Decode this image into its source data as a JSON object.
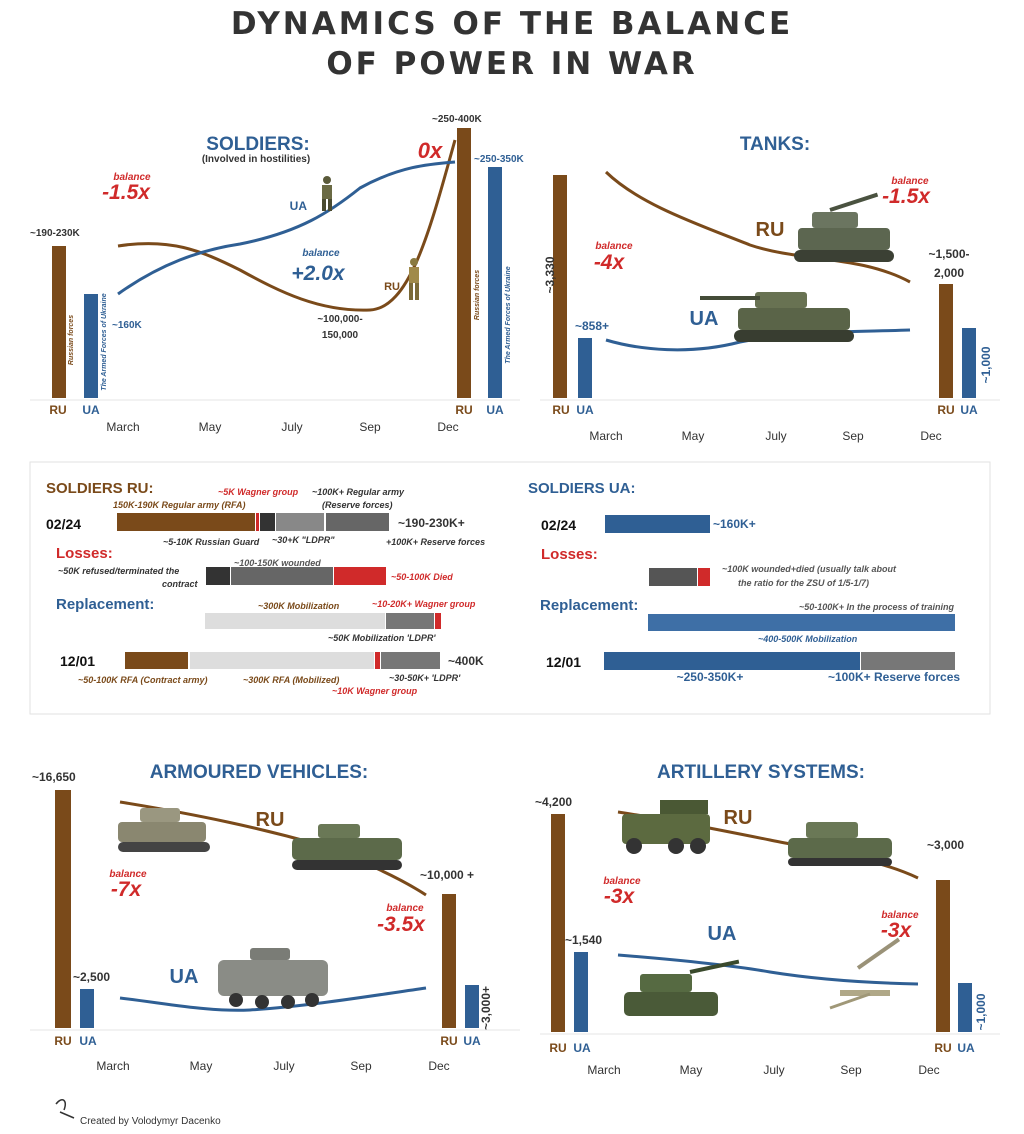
{
  "title": {
    "line1": "DYNAMICS OF THE BALANCE",
    "line2": "OF POWER IN WAR"
  },
  "colors": {
    "ru": "#7a4a1a",
    "ua": "#2f5f94",
    "red": "#d02a2a",
    "grey": "#666666",
    "light": "#dddddd"
  },
  "months": [
    "March",
    "May",
    "July",
    "Sep",
    "Dec"
  ],
  "credit": "Created by Volodymyr Dacenko",
  "soldiers": {
    "title": "SOLDIERS:",
    "subtitle": "(Involved in hostilities)",
    "ru_start": "~190-230K",
    "ua_start": "~160K",
    "ru_end": "~250-400K",
    "ua_end": "~250-350K",
    "mid_ru": "~100,000-",
    "mid_ru2": "150,000",
    "balance_word": "balance",
    "b1": "-1.5x",
    "b2": "+2.0x",
    "b3": "0x",
    "ua_tag": "UA",
    "ru_tag": "RU",
    "ru_bar_label": "Russian forces",
    "ua_bar_label": "The Armed Forces of Ukraine"
  },
  "tanks": {
    "title": "TANKS:",
    "ru_start": "~3,330",
    "ua_start": "~858+",
    "ru_end": "~1,500-",
    "ru_end2": "2,000",
    "ua_end": "~1,000",
    "balance_word": "balance",
    "b1": "-4x",
    "b2": "-1.5x",
    "ru_tag": "RU",
    "ua_tag": "UA"
  },
  "armoured": {
    "title": "ARMOURED VEHICLES:",
    "ru_start": "~16,650",
    "ua_start": "~2,500",
    "ru_end": "~10,000 +",
    "ua_end": "~3,000+",
    "balance_word": "balance",
    "b1": "-7x",
    "b2": "-3.5x",
    "ru_tag": "RU",
    "ua_tag": "UA"
  },
  "artillery": {
    "title": "ARTILLERY SYSTEMS:",
    "ru_start": "~4,200",
    "ua_start": "~1,540",
    "ru_end": "~3,000",
    "ua_end": "~1,000",
    "balance_word": "balance",
    "b1": "-3x",
    "b2": "-3x",
    "ru_tag": "RU",
    "ua_tag": "UA"
  },
  "breakdown_ru": {
    "title": "SOLDIERS RU:",
    "d1": "02/24",
    "d2": "12/01",
    "wagner5": "~5K Wagner group",
    "regular_rfa": "150K-190K Regular army (RFA)",
    "reserve1": "~100K+ Regular army",
    "reserve2": "(Reserve forces)",
    "total1": "~190-230K+",
    "guard": "~5-10K Russian Guard",
    "ldpr30": "~30+K \"LDPR\"",
    "reserve_plus": "+100K+ Reserve forces",
    "losses": "Losses:",
    "refused1": "~50K refused/terminated the",
    "refused2": "contract",
    "wounded": "~100-150K wounded",
    "died": "~50-100K Died",
    "replacement": "Replacement:",
    "mob": "~300K Mobilization",
    "wagner1020": "~10-20K+ Wagner group",
    "mob_ldpr": "~50K Mobilization 'LDPR'",
    "total2": "~400K",
    "contract": "~50-100K RFA (Contract army)",
    "mobilized": "~300K RFA (Mobilized)",
    "ldpr3050": "~30-50K+ 'LDPR'",
    "wagner10": "~10K Wagner group"
  },
  "breakdown_ua": {
    "title": "SOLDIERS UA:",
    "d1": "02/24",
    "d2": "12/01",
    "start": "~160K+",
    "losses": "Losses:",
    "loss1": "~100K wounded+died (usually talk about",
    "loss2": "the ratio for the ZSU of 1/5-1/7)",
    "replacement": "Replacement:",
    "training": "~50-100K+ In the process of training",
    "mob": "~400-500K Mobilization",
    "final": "~250-350K+",
    "reserve": "~100K+ Reserve forces"
  },
  "chart_data": [
    {
      "type": "line",
      "title": "SOLDIERS:",
      "x": [
        "March",
        "May",
        "July",
        "Sep",
        "Dec"
      ],
      "series": [
        {
          "name": "RU",
          "values": [
            190,
            170,
            125,
            125,
            325
          ]
        },
        {
          "name": "UA",
          "values": [
            160,
            205,
            235,
            285,
            300
          ]
        }
      ]
    },
    {
      "type": "line",
      "title": "TANKS:",
      "x": [
        "March",
        "May",
        "July",
        "Sep",
        "Dec"
      ],
      "series": [
        {
          "name": "RU",
          "values": [
            3330,
            2700,
            2200,
            1900,
            1750
          ]
        },
        {
          "name": "UA",
          "values": [
            858,
            880,
            950,
            1000,
            1000
          ]
        }
      ]
    },
    {
      "type": "line",
      "title": "ARMOURED VEHICLES:",
      "x": [
        "March",
        "May",
        "July",
        "Sep",
        "Dec"
      ],
      "series": [
        {
          "name": "RU",
          "values": [
            16650,
            15000,
            13500,
            12000,
            10000
          ]
        },
        {
          "name": "UA",
          "values": [
            2500,
            2200,
            2100,
            2600,
            3000
          ]
        }
      ]
    },
    {
      "type": "line",
      "title": "ARTILLERY SYSTEMS:",
      "x": [
        "March",
        "May",
        "July",
        "Sep",
        "Dec"
      ],
      "series": [
        {
          "name": "RU",
          "values": [
            4200,
            3900,
            3700,
            3400,
            3000
          ]
        },
        {
          "name": "UA",
          "values": [
            1540,
            1400,
            1200,
            1100,
            1000
          ]
        }
      ]
    }
  ]
}
